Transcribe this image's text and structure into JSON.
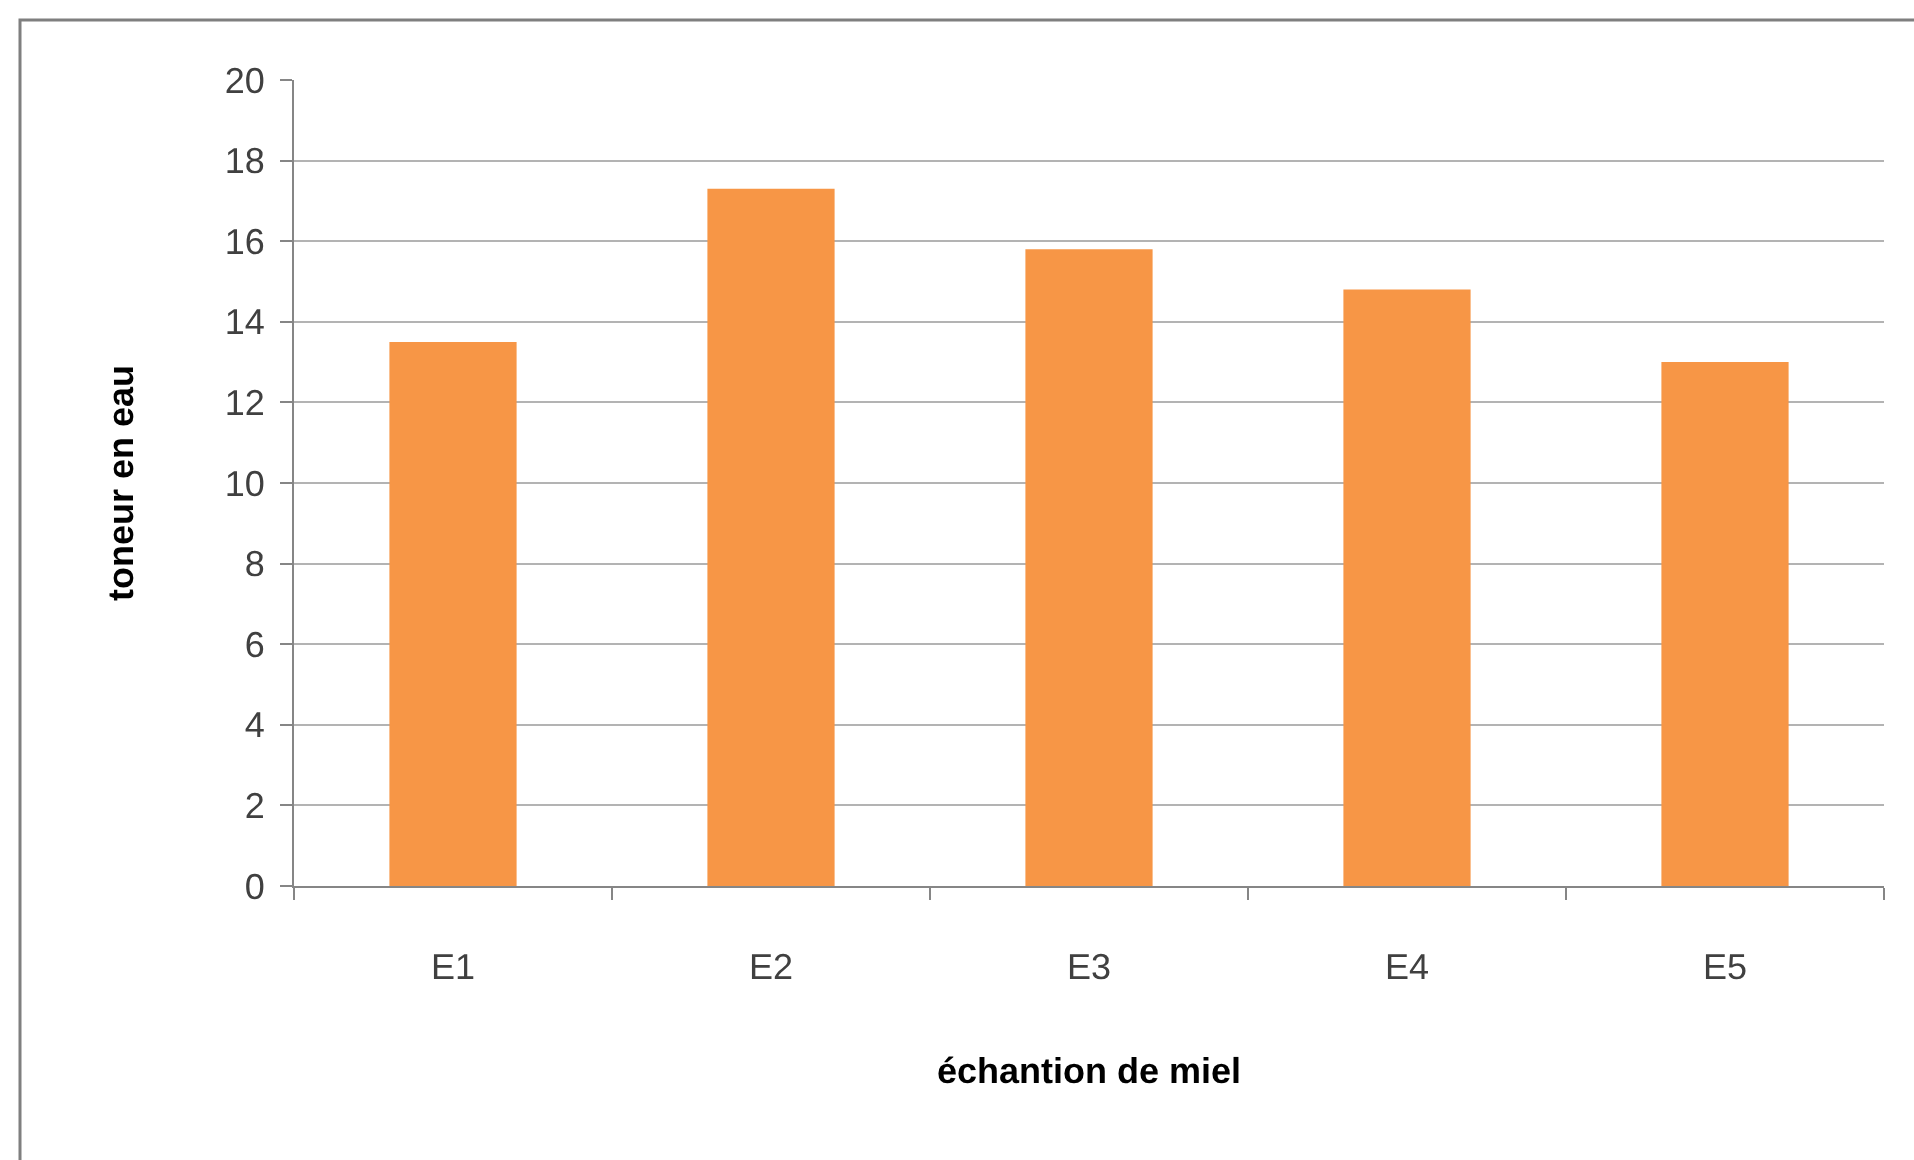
{
  "chart_data": {
    "type": "bar",
    "xlabel": "échantion de miel",
    "ylabel": "toneur en eau",
    "categories": [
      "E1",
      "E2",
      "E3",
      "E4",
      "E5"
    ],
    "values": [
      13.5,
      17.3,
      15.8,
      14.8,
      13.0
    ],
    "color": "#f79646",
    "ylim": [
      0,
      20
    ],
    "yticks": [
      0,
      2,
      4,
      6,
      8,
      10,
      12,
      14,
      16,
      18,
      20
    ],
    "grid": "y"
  }
}
